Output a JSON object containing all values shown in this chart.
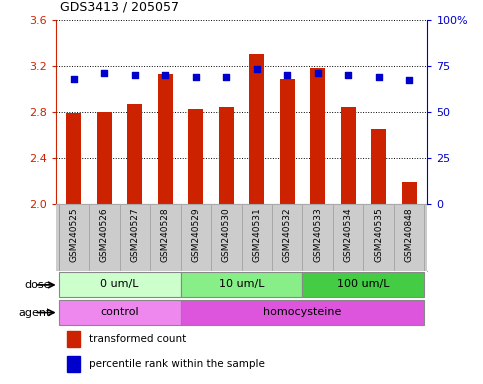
{
  "title": "GDS3413 / 205057",
  "categories": [
    "GSM240525",
    "GSM240526",
    "GSM240527",
    "GSM240528",
    "GSM240529",
    "GSM240530",
    "GSM240531",
    "GSM240532",
    "GSM240533",
    "GSM240534",
    "GSM240535",
    "GSM240848"
  ],
  "bar_values": [
    2.79,
    2.8,
    2.87,
    3.13,
    2.82,
    2.84,
    3.3,
    3.08,
    3.18,
    2.84,
    2.65,
    2.19
  ],
  "dot_percentiles": [
    68,
    71,
    70,
    70,
    69,
    69,
    73,
    70,
    71,
    70,
    69,
    67
  ],
  "bar_bottom": 2.0,
  "ylim": [
    2.0,
    3.6
  ],
  "y2lim": [
    0,
    100
  ],
  "yticks": [
    2.0,
    2.4,
    2.8,
    3.2,
    3.6
  ],
  "y2ticks": [
    0,
    25,
    50,
    75,
    100
  ],
  "bar_color": "#cc2200",
  "dot_color": "#0000cc",
  "dose_groups": [
    {
      "label": "0 um/L",
      "start": 0,
      "end": 3,
      "color": "#ccffcc"
    },
    {
      "label": "10 um/L",
      "start": 4,
      "end": 7,
      "color": "#88ee88"
    },
    {
      "label": "100 um/L",
      "start": 8,
      "end": 11,
      "color": "#44cc44"
    }
  ],
  "agent_groups": [
    {
      "label": "control",
      "start": 0,
      "end": 3,
      "color": "#ee88ee"
    },
    {
      "label": "homocysteine",
      "start": 4,
      "end": 11,
      "color": "#dd55dd"
    }
  ],
  "dose_label": "dose",
  "agent_label": "agent",
  "legend_bar": "transformed count",
  "legend_dot": "percentile rank within the sample",
  "bar_color_r": "#cc2200",
  "dot_color_b": "#0000cc",
  "xlabel_bg": "#cccccc",
  "yaxis_color": "#cc2200",
  "y2axis_color": "#0000cc"
}
